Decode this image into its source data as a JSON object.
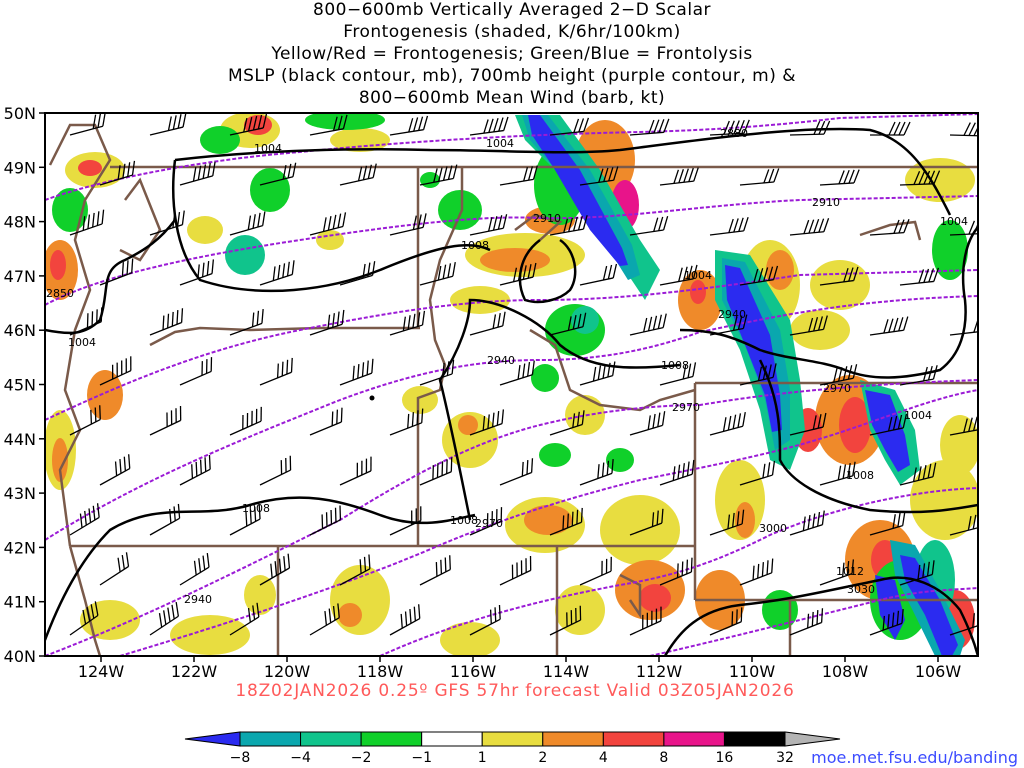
{
  "title": {
    "line1": "800−600mb Vertically Averaged 2−D Scalar",
    "line2": "Frontogenesis (shaded, K/6hr/100km)",
    "line3": "Yellow/Red = Frontogenesis;  Green/Blue = Frontolysis",
    "line4": "MSLP (black contour, mb), 700mb height (purple contour, m) &",
    "line5": "800−600mb Mean Wind (barb, kt)"
  },
  "valid_line": "18Z02JAN2026 0.25º GFS 57hr forecast Valid 03Z05JAN2026",
  "credit": "moe.met.fsu.edu/banding",
  "axes": {
    "lat_labels": [
      "50N",
      "49N",
      "48N",
      "47N",
      "46N",
      "45N",
      "44N",
      "43N",
      "42N",
      "41N",
      "40N"
    ],
    "lon_labels": [
      "124W",
      "122W",
      "120W",
      "118W",
      "116W",
      "114W",
      "112W",
      "110W",
      "108W",
      "106W"
    ]
  },
  "colorbar": {
    "labels": [
      "−8",
      "−4",
      "−2",
      "−1",
      "1",
      "2",
      "4",
      "8",
      "16",
      "32"
    ],
    "colors": [
      "#2b2bf0",
      "#0aa7ae",
      "#10c48c",
      "#10d02a",
      "#ffffff",
      "#e8dd40",
      "#ef8a2a",
      "#f2443e",
      "#e8148a",
      "#000000",
      "#b4b4b4"
    ]
  },
  "mslp_labels": [
    "1004",
    "1004",
    "1004",
    "1004",
    "1004",
    "1004",
    "1008",
    "1008",
    "1008",
    "1008",
    "1008",
    "1012"
  ],
  "height_labels": [
    "2880",
    "2910",
    "2910",
    "2850",
    "2940",
    "2940",
    "2970",
    "2970",
    "2970",
    "3000",
    "3030",
    "2940"
  ],
  "colors": {
    "mslp": "#000000",
    "height": "#9b1bd6",
    "borders": "#7a5a4a",
    "valid_text": "#ff5a5a",
    "credit": "#3c4cff"
  }
}
